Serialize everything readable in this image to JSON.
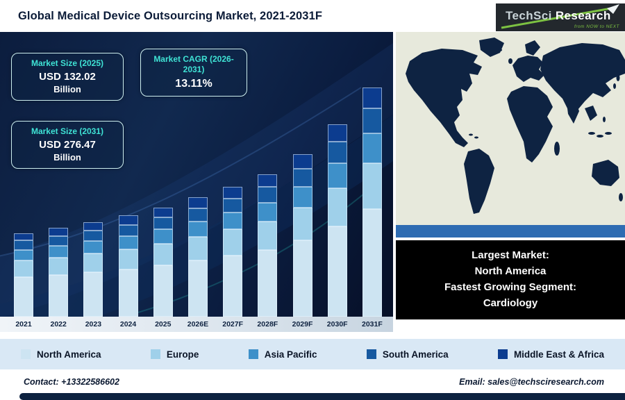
{
  "header": {
    "title": "Global Medical Device Outsourcing Market, 2021-2031F",
    "logo": {
      "brand_primary": "TechSci",
      "brand_secondary": "Research",
      "tagline": "from NOW to NEXT"
    }
  },
  "info_boxes": {
    "market_size_2025": {
      "label": "Market Size (2025)",
      "value": "USD 132.02",
      "unit": "Billion"
    },
    "market_cagr": {
      "label": "Market CAGR (2026-2031)",
      "value": "13.11%"
    },
    "market_size_2031": {
      "label": "Market Size (2031)",
      "value": "USD 276.47",
      "unit": "Billion"
    }
  },
  "chart_data": {
    "type": "bar",
    "stacked": true,
    "value_unit": "USD Billion",
    "title": "Global Medical Device Outsourcing Market, 2021-2031F",
    "legend_position": "bottom",
    "y_axis_labels_visible": false,
    "categories": [
      "2021",
      "2022",
      "2023",
      "2024",
      "2025",
      "2026E",
      "2027F",
      "2028F",
      "2029F",
      "2030F",
      "2031F"
    ],
    "totals": [
      101,
      107,
      114,
      122,
      132.02,
      144,
      157,
      172,
      196,
      232,
      276.47
    ],
    "series": [
      {
        "name": "North America",
        "color": "#cde4f2",
        "values": [
          47.5,
          50.3,
          53.6,
          57.3,
          62.0,
          67.7,
          73.8,
          80.8,
          92.1,
          109.0,
          129.9
        ]
      },
      {
        "name": "Europe",
        "color": "#9fd0ea",
        "values": [
          20.2,
          21.4,
          22.8,
          24.4,
          26.4,
          28.8,
          31.4,
          34.4,
          39.2,
          46.4,
          55.3
        ]
      },
      {
        "name": "Asia Pacific",
        "color": "#3e90c9",
        "values": [
          13.1,
          13.9,
          14.8,
          15.9,
          17.2,
          18.7,
          20.4,
          22.4,
          25.5,
          30.2,
          35.9
        ]
      },
      {
        "name": "South America",
        "color": "#1659a0",
        "values": [
          11.1,
          11.8,
          12.5,
          13.4,
          14.5,
          15.8,
          17.3,
          18.9,
          21.6,
          25.5,
          30.4
        ]
      },
      {
        "name": "Middle East & Africa",
        "color": "#0c3c8f",
        "values": [
          9.1,
          9.6,
          10.3,
          11.0,
          11.9,
          13.0,
          14.1,
          15.5,
          17.6,
          20.9,
          24.9
        ]
      }
    ]
  },
  "map_panel": {
    "line1": "Largest Market:",
    "line2": "North America",
    "line3": "Fastest Growing Segment:",
    "line4": "Cardiology"
  },
  "footer": {
    "contact": "Contact: +13322586602",
    "email": "Email: sales@techsciresearch.com"
  }
}
